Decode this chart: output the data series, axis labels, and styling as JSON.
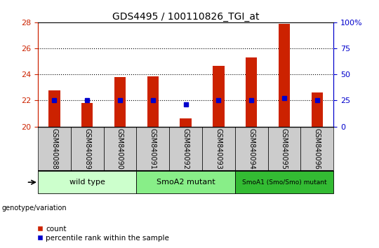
{
  "title": "GDS4495 / 100110826_TGI_at",
  "samples": [
    "GSM840088",
    "GSM840089",
    "GSM840090",
    "GSM840091",
    "GSM840092",
    "GSM840093",
    "GSM840094",
    "GSM840095",
    "GSM840096"
  ],
  "counts": [
    22.8,
    21.8,
    23.8,
    23.85,
    20.6,
    24.65,
    25.3,
    27.9,
    22.6
  ],
  "percentile_ranks": [
    25,
    25,
    25,
    25,
    21.5,
    25,
    25,
    27,
    25
  ],
  "ylim_left": [
    20,
    28
  ],
  "ylim_right": [
    0,
    100
  ],
  "yticks_left": [
    20,
    22,
    24,
    26,
    28
  ],
  "yticks_right": [
    0,
    25,
    50,
    75,
    100
  ],
  "groups": [
    {
      "label": "wild type",
      "start": 0,
      "end": 3,
      "color": "#ccffcc"
    },
    {
      "label": "SmoA2 mutant",
      "start": 3,
      "end": 6,
      "color": "#88ee88"
    },
    {
      "label": "SmoA1 (Smo/Smo) mutant",
      "start": 6,
      "end": 9,
      "color": "#33bb33"
    }
  ],
  "bar_color": "#cc2200",
  "dot_color": "#0000cc",
  "genotype_label": "genotype/variation",
  "legend_count_label": "count",
  "legend_percentile_label": "percentile rank within the sample",
  "left_axis_color": "#cc2200",
  "right_axis_color": "#0000cc",
  "grid_dotted_lines": [
    22,
    24,
    26
  ],
  "xtick_box_color": "#cccccc",
  "bar_width": 0.35
}
